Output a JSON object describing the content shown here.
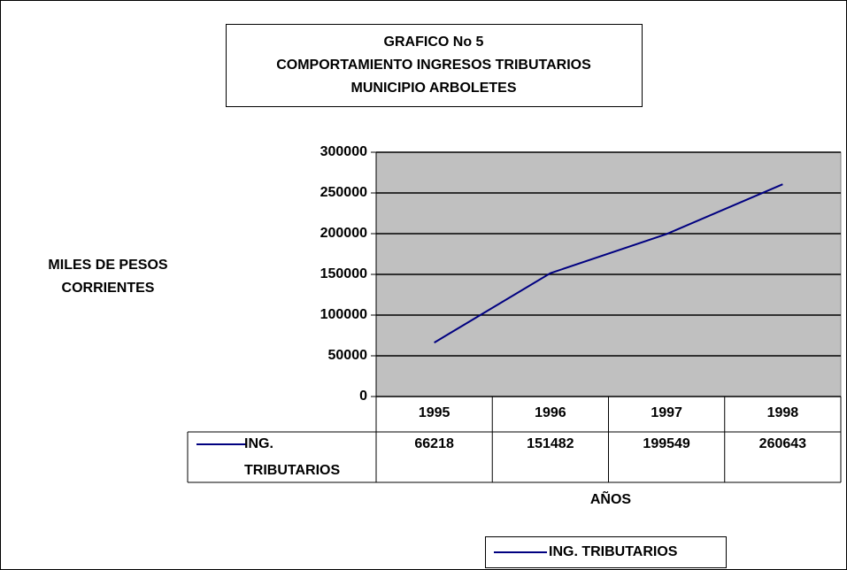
{
  "chart_data": {
    "type": "line",
    "title": [
      "GRAFICO No 5",
      "COMPORTAMIENTO INGRESOS TRIBUTARIOS",
      "MUNICIPIO ARBOLETES"
    ],
    "y_label": [
      "MILES DE PESOS",
      "CORRIENTES"
    ],
    "x_label": "AÑOS",
    "categories": [
      "1995",
      "1996",
      "1997",
      "1998"
    ],
    "series": [
      {
        "name": "ING. TRIBUTARIOS",
        "color": "#000080",
        "values": [
          66218,
          151482,
          199549,
          260643
        ]
      }
    ],
    "ylim": [
      0,
      300000
    ],
    "yticks": [
      0,
      50000,
      100000,
      150000,
      200000,
      250000,
      300000
    ],
    "grid": true,
    "plot_background": "#c0c0c0",
    "legend": "bottom",
    "data_table": true
  }
}
